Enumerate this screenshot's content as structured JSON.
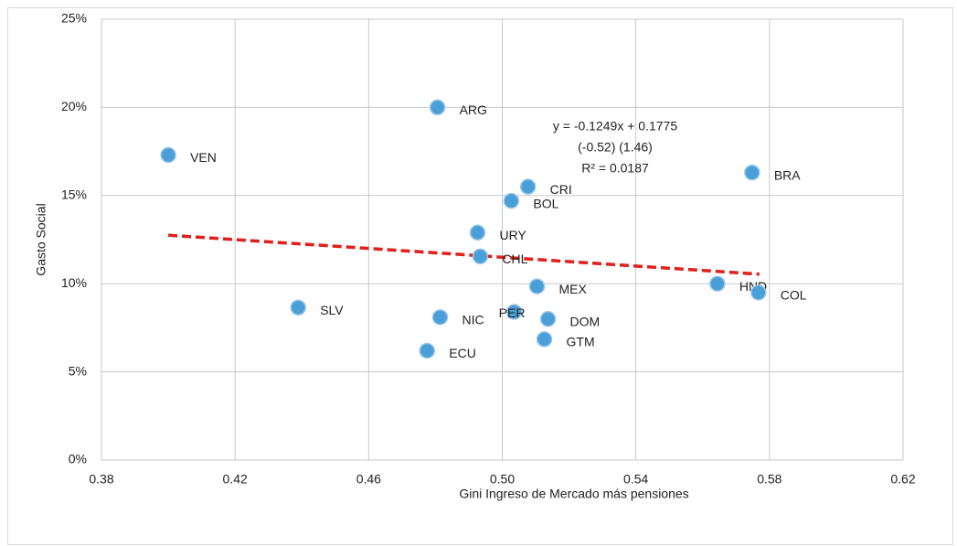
{
  "chart_data": {
    "type": "scatter",
    "x_label": "Gini Ingreso de Mercado más pensiones",
    "y_label": "Gasto Social",
    "labels": [
      "VEN",
      "ARG",
      "CRI",
      "BOL",
      "BRA",
      "URY",
      "CHL",
      "MEX",
      "HND",
      "COL",
      "SLV",
      "NIC",
      "PER",
      "DOM",
      "GTM",
      "ECU"
    ],
    "x": [
      0.4,
      0.4806,
      0.5077,
      0.5027,
      0.5748,
      0.4926,
      0.4934,
      0.5104,
      0.5644,
      0.5767,
      0.4389,
      0.4814,
      0.5036,
      0.5137,
      0.5126,
      0.4775
    ],
    "values": [
      17.3,
      20.0,
      15.5,
      14.7,
      16.3,
      12.9,
      11.55,
      9.85,
      10.0,
      9.5,
      8.65,
      8.1,
      8.4,
      8.0,
      6.85,
      6.2
    ],
    "color": "#4a9fd8",
    "trendline": {
      "x": [
        0.4,
        0.577
      ],
      "values": [
        12.75,
        10.54
      ],
      "color": "#e0201b"
    },
    "annotation": [
      "y = -0.1249x + 0.1775",
      "(-0.52)        (1.46)",
      "R² = 0.0187"
    ],
    "xlim": [
      0.38,
      0.62
    ],
    "xticks": [
      0.38,
      0.42,
      0.46,
      {
        "value": 0.5,
        "label": "0.50"
      },
      0.54,
      0.58,
      0.62
    ],
    "ylim": [
      0,
      25
    ],
    "yticks": [
      {
        "value": 0,
        "label": "0%"
      },
      {
        "value": 5,
        "label": "5%"
      },
      {
        "value": 10,
        "label": "10%"
      },
      {
        "value": 15,
        "label": "15%"
      },
      {
        "value": 20,
        "label": "20%"
      },
      {
        "value": 25,
        "label": "25%"
      }
    ],
    "grid": true
  }
}
